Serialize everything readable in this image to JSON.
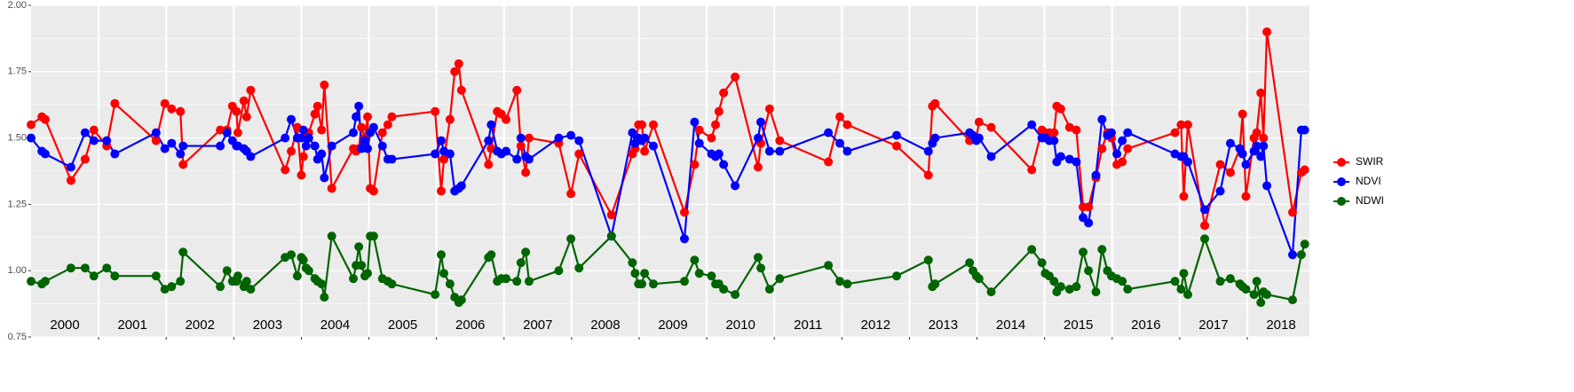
{
  "chart_data": {
    "type": "line",
    "x": [
      2000.0,
      2000.16,
      2000.21,
      2000.59,
      2000.8,
      2000.93,
      2001.12,
      2001.24,
      2001.85,
      2001.98,
      2002.08,
      2002.21,
      2002.25,
      2002.8,
      2002.9,
      2002.98,
      2003.04,
      2003.06,
      2003.15,
      2003.19,
      2003.25,
      2003.76,
      2003.85,
      2003.94,
      2004.0,
      2004.03,
      2004.07,
      2004.11,
      2004.2,
      2004.24,
      2004.3,
      2004.34,
      2004.45,
      2004.77,
      2004.81,
      2004.85,
      2004.89,
      2004.94,
      2004.98,
      2005.02,
      2005.07,
      2005.2,
      2005.28,
      2005.34,
      2005.98,
      2006.07,
      2006.11,
      2006.2,
      2006.27,
      2006.33,
      2006.37,
      2006.77,
      2006.81,
      2006.9,
      2006.96,
      2007.03,
      2007.19,
      2007.25,
      2007.32,
      2007.37,
      2007.81,
      2007.99,
      2008.11,
      2008.59,
      2008.9,
      2008.94,
      2008.99,
      2009.04,
      2009.08,
      2009.21,
      2009.67,
      2009.82,
      2009.89,
      2010.07,
      2010.13,
      2010.18,
      2010.25,
      2010.42,
      2010.76,
      2010.8,
      2010.93,
      2011.08,
      2011.8,
      2011.97,
      2012.08,
      2012.81,
      2013.28,
      2013.34,
      2013.38,
      2013.89,
      2013.94,
      2013.99,
      2014.03,
      2014.21,
      2014.81,
      2014.96,
      2015.01,
      2015.07,
      2015.14,
      2015.18,
      2015.24,
      2015.37,
      2015.47,
      2015.57,
      2015.65,
      2015.76,
      2015.85,
      2015.93,
      2015.99,
      2016.07,
      2016.15,
      2016.23,
      2016.93,
      2017.02,
      2017.06,
      2017.12,
      2017.37,
      2017.6,
      2017.75,
      2017.89,
      2017.93,
      2017.98,
      2018.1,
      2018.14,
      2018.2,
      2018.24,
      2018.29,
      2018.67,
      2018.8,
      2018.85
    ],
    "series": [
      {
        "name": "SWIR",
        "color": "#ff0000",
        "values": [
          1.55,
          1.58,
          1.57,
          1.34,
          1.42,
          1.53,
          1.47,
          1.63,
          1.49,
          1.63,
          1.61,
          1.6,
          1.4,
          1.53,
          1.53,
          1.62,
          1.6,
          1.52,
          1.64,
          1.58,
          1.68,
          1.38,
          1.45,
          1.54,
          1.36,
          1.43,
          1.52,
          1.52,
          1.59,
          1.62,
          1.53,
          1.7,
          1.31,
          1.46,
          1.45,
          1.46,
          1.54,
          1.5,
          1.58,
          1.31,
          1.3,
          1.52,
          1.55,
          1.58,
          1.6,
          1.3,
          1.42,
          1.57,
          1.75,
          1.78,
          1.68,
          1.4,
          1.46,
          1.6,
          1.59,
          1.57,
          1.68,
          1.47,
          1.37,
          1.5,
          1.48,
          1.29,
          1.44,
          1.21,
          1.44,
          1.46,
          1.55,
          1.55,
          1.45,
          1.55,
          1.22,
          1.4,
          1.53,
          1.5,
          1.55,
          1.6,
          1.67,
          1.73,
          1.39,
          1.48,
          1.61,
          1.49,
          1.41,
          1.58,
          1.55,
          1.47,
          1.36,
          1.62,
          1.63,
          1.49,
          1.5,
          1.5,
          1.56,
          1.54,
          1.38,
          1.53,
          1.52,
          1.52,
          1.52,
          1.62,
          1.61,
          1.54,
          1.53,
          1.24,
          1.24,
          1.35,
          1.46,
          1.52,
          1.5,
          1.4,
          1.41,
          1.46,
          1.52,
          1.55,
          1.28,
          1.55,
          1.17,
          1.4,
          1.37,
          1.46,
          1.59,
          1.28,
          1.5,
          1.52,
          1.67,
          1.5,
          1.9,
          1.22,
          1.37,
          1.38
        ]
      },
      {
        "name": "NDVI",
        "color": "#0000ff",
        "values": [
          1.5,
          1.45,
          1.44,
          1.39,
          1.52,
          1.49,
          1.49,
          1.44,
          1.52,
          1.46,
          1.48,
          1.44,
          1.47,
          1.47,
          1.52,
          1.49,
          1.47,
          1.47,
          1.46,
          1.45,
          1.43,
          1.5,
          1.57,
          1.5,
          1.5,
          1.53,
          1.47,
          1.5,
          1.47,
          1.42,
          1.44,
          1.35,
          1.47,
          1.52,
          1.58,
          1.62,
          1.46,
          1.49,
          1.46,
          1.52,
          1.54,
          1.47,
          1.42,
          1.42,
          1.44,
          1.49,
          1.45,
          1.44,
          1.3,
          1.31,
          1.32,
          1.49,
          1.55,
          1.45,
          1.44,
          1.45,
          1.42,
          1.5,
          1.43,
          1.42,
          1.5,
          1.51,
          1.49,
          1.13,
          1.52,
          1.48,
          1.5,
          1.49,
          1.5,
          1.47,
          1.12,
          1.56,
          1.48,
          1.44,
          1.43,
          1.44,
          1.4,
          1.32,
          1.5,
          1.56,
          1.45,
          1.45,
          1.52,
          1.48,
          1.45,
          1.51,
          1.45,
          1.48,
          1.5,
          1.52,
          1.51,
          1.49,
          1.5,
          1.43,
          1.55,
          1.5,
          1.5,
          1.49,
          1.49,
          1.41,
          1.43,
          1.42,
          1.41,
          1.2,
          1.18,
          1.36,
          1.57,
          1.51,
          1.52,
          1.44,
          1.49,
          1.52,
          1.44,
          1.43,
          1.43,
          1.41,
          1.23,
          1.3,
          1.48,
          1.46,
          1.44,
          1.4,
          1.45,
          1.47,
          1.43,
          1.47,
          1.32,
          1.06,
          1.53,
          1.53
        ]
      },
      {
        "name": "NDWI",
        "color": "#006400",
        "values": [
          0.96,
          0.95,
          0.96,
          1.01,
          1.01,
          0.98,
          1.01,
          0.98,
          0.98,
          0.93,
          0.94,
          0.96,
          1.07,
          0.94,
          1.0,
          0.96,
          0.96,
          0.98,
          0.94,
          0.96,
          0.93,
          1.05,
          1.06,
          0.98,
          1.05,
          1.04,
          1.01,
          1.0,
          0.97,
          0.96,
          0.95,
          0.9,
          1.13,
          0.97,
          1.02,
          1.09,
          1.02,
          0.98,
          0.99,
          1.13,
          1.13,
          0.97,
          0.96,
          0.95,
          0.91,
          1.06,
          0.99,
          0.95,
          0.9,
          0.88,
          0.89,
          1.05,
          1.06,
          0.96,
          0.97,
          0.97,
          0.96,
          1.03,
          1.07,
          0.96,
          1.0,
          1.12,
          1.01,
          1.13,
          1.03,
          0.99,
          0.95,
          0.95,
          0.99,
          0.95,
          0.96,
          1.04,
          0.99,
          0.98,
          0.95,
          0.95,
          0.93,
          0.91,
          1.05,
          1.01,
          0.93,
          0.97,
          1.02,
          0.96,
          0.95,
          0.98,
          1.04,
          0.94,
          0.95,
          1.03,
          1.0,
          0.98,
          0.97,
          0.92,
          1.08,
          1.03,
          0.99,
          0.98,
          0.96,
          0.92,
          0.94,
          0.93,
          0.94,
          1.07,
          1.0,
          0.92,
          1.08,
          1.0,
          0.98,
          0.97,
          0.96,
          0.93,
          0.96,
          0.93,
          0.99,
          0.91,
          1.12,
          0.96,
          0.97,
          0.95,
          0.94,
          0.93,
          0.91,
          0.96,
          0.88,
          0.92,
          0.91,
          0.89,
          1.06,
          1.1
        ]
      }
    ],
    "annotations": [
      "2000",
      "2001",
      "2002",
      "2003",
      "2004",
      "2005",
      "2006",
      "2007",
      "2008",
      "2009",
      "2010",
      "2011",
      "2012",
      "2013",
      "2014",
      "2015",
      "2016",
      "2017",
      "2018"
    ],
    "xlim": [
      2000,
      2018.92
    ],
    "xticks": [
      2001,
      2002,
      2003,
      2004,
      2005,
      2006,
      2007,
      2008,
      2009,
      2010,
      2011,
      2012,
      2013,
      2014,
      2015,
      2016,
      2017,
      2018
    ],
    "ylim": [
      0.75,
      2.0
    ],
    "yticks": [
      {
        "value": 0.75,
        "label": "0.75"
      },
      {
        "value": 1.0,
        "label": "1.00"
      },
      {
        "value": 1.25,
        "label": "1.25"
      },
      {
        "value": 1.5,
        "label": "1.50"
      },
      {
        "value": 1.75,
        "label": "1.75"
      },
      {
        "value": 2.0,
        "label": "2.00"
      }
    ],
    "grid": true,
    "legend": "right"
  }
}
